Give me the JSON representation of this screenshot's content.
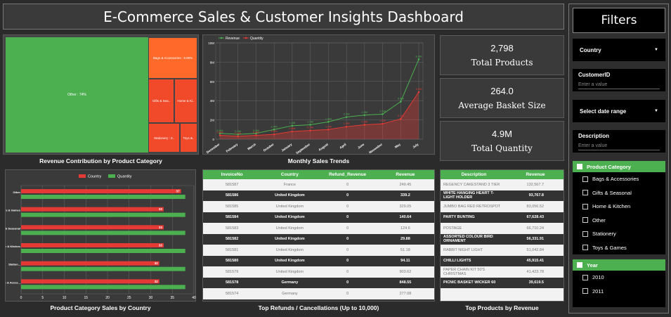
{
  "header": {
    "title": "E-Commerce Sales & Customer Insights Dashboard"
  },
  "treemap": {
    "caption": "Revenue Contribution by Product Category",
    "tiles": [
      {
        "label": "Other : 74%",
        "color": "#4caf50"
      },
      {
        "label": "Bags & Accessories : 9.96%",
        "color": "#ff6a2a"
      },
      {
        "label": "Gifts & Sea..",
        "color": "#f04a2a"
      },
      {
        "label": "Home & Ki..",
        "color": "#f04a2a"
      },
      {
        "label": "Stationery : 3..",
        "color": "#f04a2a"
      },
      {
        "label": "Toys &..",
        "color": "#f04a2a"
      }
    ]
  },
  "kpis": [
    {
      "value": "2,798",
      "label": "Total Products"
    },
    {
      "value": "264.0",
      "label": "Average Basket Size"
    },
    {
      "value": "4.9M",
      "label": "Total Quantity"
    }
  ],
  "filters": {
    "title": "Filters",
    "country_label": "Country",
    "customer_label": "CustomerID",
    "customer_placeholder": "Enter a value",
    "date_label": "Select date range",
    "description_label": "Description",
    "description_placeholder": "Enter a value",
    "category_header": "Product Category",
    "categories": [
      "Bags & Accessories",
      "Gifts & Seasonal",
      "Home & Kitchen",
      "Other",
      "Stationery",
      "Toys & Games"
    ],
    "year_header": "Year",
    "years": [
      "2010",
      "2011"
    ]
  },
  "refunds": {
    "caption": "Top Refunds / Cancellations (Up to 10,000)",
    "columns": [
      "InvoiceNo",
      "Country",
      "Refund_Revenue",
      "Revenue"
    ],
    "rows": [
      [
        "581587",
        "France",
        "0",
        "249.45"
      ],
      [
        "581586",
        "United Kingdom",
        "0",
        "339.2"
      ],
      [
        "581585",
        "United Kingdom",
        "0",
        "329.05"
      ],
      [
        "581584",
        "United Kingdom",
        "0",
        "140.64"
      ],
      [
        "581583",
        "United Kingdom",
        "0",
        "124.6"
      ],
      [
        "581582",
        "United Kingdom",
        "0",
        "29.88"
      ],
      [
        "581581",
        "United Kingdom",
        "0",
        "51.18"
      ],
      [
        "581580",
        "United Kingdom",
        "0",
        "94.11"
      ],
      [
        "581579",
        "United Kingdom",
        "0",
        "903.62"
      ],
      [
        "581578",
        "Germany",
        "0",
        "848.55"
      ],
      [
        "581574",
        "Germany",
        "0",
        "277.08"
      ],
      [
        "581573",
        "United Kingdom",
        "0",
        "260.52"
      ]
    ]
  },
  "products": {
    "caption": "Top Products by Revenue",
    "columns": [
      "Description",
      "Revenue"
    ],
    "rows": [
      [
        "REGENCY CAKESTAND 3 TIER",
        "132,567.7"
      ],
      [
        "WHITE HANGING HEART T-LIGHT HOLDER",
        "93,767.8"
      ],
      [
        "JUMBO BAG RED RETROSPOT",
        "83,056.52"
      ],
      [
        "PARTY BUNTING",
        "67,628.43"
      ],
      [
        "POSTAGE",
        "66,710.24"
      ],
      [
        "ASSORTED COLOUR BIRD ORNAMENT",
        "56,331.91"
      ],
      [
        "RABBIT NIGHT LIGHT",
        "51,042.84"
      ],
      [
        "CHILLI LIGHTS",
        "45,915.41"
      ],
      [
        "PAPER CHAIN KIT 50'S CHRISTMAS",
        "41,423.78"
      ],
      [
        "PICNIC BASKET WICKER 60",
        "39,619.5"
      ]
    ]
  },
  "chart_data": [
    {
      "type": "line",
      "title": "Monthly Sales Trends",
      "caption": "Monthly Sales Trends",
      "x": [
        "December",
        "February",
        "March",
        "October",
        "January",
        "September",
        "August",
        "April",
        "June",
        "November",
        "May",
        "July"
      ],
      "ylim": [
        0,
        10
      ],
      "yticks": [
        "0",
        "2M",
        "4M",
        "6M",
        "8M",
        "10M"
      ],
      "series": [
        {
          "name": "Revenue",
          "color": "#4caf50",
          "values": [
            0.6,
            0.5,
            0.6,
            1.0,
            1.4,
            1.5,
            1.8,
            2.3,
            2.5,
            2.6,
            3.9,
            8.3
          ],
          "labels": [
            "0.6M",
            "0.5M",
            "0.6M",
            "1.0M",
            "1.4M",
            "1.5M",
            "1.8M",
            "2.3M",
            "2.5M",
            "2.6M",
            "3.9M",
            "8.3M"
          ]
        },
        {
          "name": "Quantity",
          "color": "#e53935",
          "values": [
            0.4,
            0.3,
            0.4,
            0.5,
            0.8,
            0.9,
            1.0,
            1.3,
            1.5,
            1.6,
            2.1,
            4.9
          ],
          "labels": [
            "0.4M",
            "0.3M",
            "0.4M",
            "0.5M",
            "0.8M",
            "0.9M",
            "1.0M",
            "1.3M",
            "1.5M",
            "1.6M",
            "2.1M",
            "4.9M"
          ]
        }
      ],
      "legend": "top-left",
      "grid": true
    },
    {
      "type": "bar",
      "title": "Product Category Sales by Country",
      "caption": "Product Category Sales by Country",
      "orientation": "horizontal",
      "categories": [
        "Other",
        "Toys & Games",
        "Gifts & Seasonal",
        "Home & Kitchen",
        "Station...",
        "Bags & Acces..."
      ],
      "series": [
        {
          "name": "Country",
          "color": "#e53935",
          "values": [
            37,
            33,
            33,
            33,
            32,
            32
          ]
        },
        {
          "name": "Quantity",
          "color": "#4caf50",
          "values": [
            38,
            38,
            38,
            38,
            38,
            38
          ]
        }
      ],
      "xlim": [
        0,
        40
      ],
      "xticks": [
        "0",
        "5",
        "10",
        "15",
        "20",
        "25",
        "30",
        "35",
        "40"
      ],
      "legend": "top"
    }
  ]
}
